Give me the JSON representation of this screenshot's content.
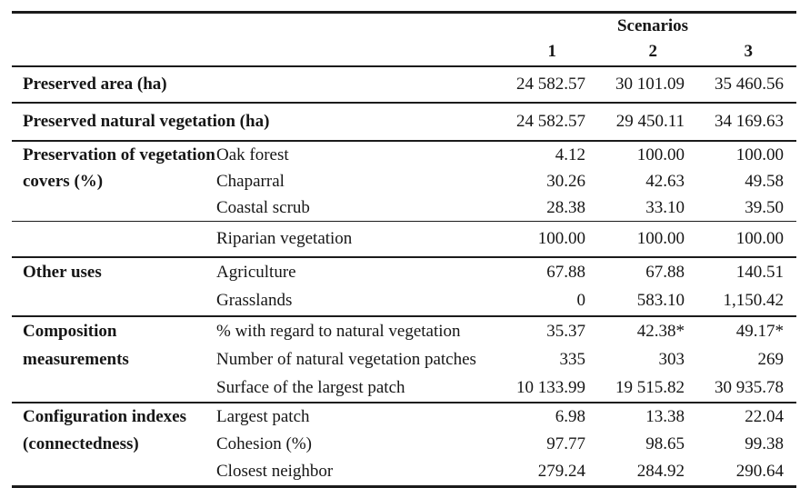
{
  "table": {
    "header": {
      "group_label": "Scenarios",
      "columns": [
        "1",
        "2",
        "3"
      ]
    },
    "sections": [
      {
        "label": "Preserved area (ha)",
        "rows": [
          {
            "sub": "",
            "values": [
              "24 582.57",
              "30 101.09",
              "35 460.56"
            ]
          }
        ]
      },
      {
        "label": "Preserved natural vegetation (ha)",
        "rows": [
          {
            "sub": "",
            "values": [
              "24 582.57",
              "29 450.11",
              "34 169.63"
            ]
          }
        ]
      },
      {
        "label": "Preservation of vegetation covers (%)",
        "rows": [
          {
            "sub": "Oak forest",
            "values": [
              "4.12",
              "100.00",
              "100.00"
            ]
          },
          {
            "sub": "Chaparral",
            "values": [
              "30.26",
              "42.63",
              "49.58"
            ]
          },
          {
            "sub": "Coastal scrub",
            "values": [
              "28.38",
              "33.10",
              "39.50"
            ]
          }
        ]
      },
      {
        "label": "",
        "rows": [
          {
            "sub": "Riparian vegetation",
            "values": [
              "100.00",
              "100.00",
              "100.00"
            ]
          }
        ]
      },
      {
        "label": "Other uses",
        "rows": [
          {
            "sub": "Agriculture",
            "values": [
              "67.88",
              "67.88",
              "140.51"
            ]
          },
          {
            "sub": "Grasslands",
            "values": [
              "0",
              "583.10",
              "1,150.42"
            ]
          }
        ]
      },
      {
        "label": "Composition measurements",
        "rows": [
          {
            "sub": "% with regard to natural vegetation",
            "values": [
              "35.37",
              "42.38*",
              "49.17*"
            ]
          },
          {
            "sub": "Number of natural vegetation patches",
            "values": [
              "335",
              "303",
              "269"
            ]
          },
          {
            "sub": "Surface of the largest patch",
            "values": [
              "10 133.99",
              "19 515.82",
              "30 935.78"
            ]
          }
        ]
      },
      {
        "label": "Configuration indexes (connectedness)",
        "rows": [
          {
            "sub": "Largest patch",
            "values": [
              "6.98",
              "13.38",
              "22.04"
            ]
          },
          {
            "sub": "Cohesion (%)",
            "values": [
              "97.77",
              "98.65",
              "99.38"
            ]
          },
          {
            "sub": "Closest neighbor",
            "values": [
              "279.24",
              "284.92",
              "290.64"
            ]
          }
        ]
      }
    ]
  }
}
